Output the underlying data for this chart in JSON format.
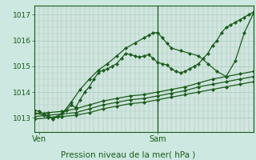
{
  "bg_color": "#cce8e0",
  "grid_color_v": "#d8a8a8",
  "grid_color_h": "#aaccc0",
  "line_color": "#1a5c1a",
  "xlabel_label": "Pression niveau de la mer( hPa )",
  "xtick_labels_text": [
    "Ven",
    "Sam"
  ],
  "ven_x": 1,
  "sam_x": 27,
  "ytick_values": [
    1013,
    1014,
    1015,
    1016,
    1017
  ],
  "ylim": [
    1012.45,
    1017.35
  ],
  "xlim": [
    0,
    48
  ],
  "lines": [
    {
      "x": [
        0,
        1,
        2,
        3,
        4,
        5,
        6,
        7,
        8,
        9,
        10,
        11,
        12,
        13,
        14,
        15,
        16,
        17,
        18,
        19,
        20,
        21,
        22,
        23,
        24,
        25,
        26,
        27,
        28,
        29,
        30,
        31,
        32,
        33,
        34,
        35,
        36,
        37,
        38,
        39,
        40,
        41,
        42,
        43,
        44,
        45,
        46,
        47,
        48
      ],
      "y": [
        1013.3,
        1013.25,
        1013.15,
        1013.05,
        1012.95,
        1013.05,
        1013.15,
        1013.3,
        1013.5,
        1013.4,
        1013.7,
        1014.0,
        1014.2,
        1014.5,
        1014.75,
        1014.85,
        1014.9,
        1015.0,
        1015.1,
        1015.3,
        1015.5,
        1015.45,
        1015.4,
        1015.35,
        1015.4,
        1015.45,
        1015.3,
        1015.15,
        1015.1,
        1015.05,
        1014.9,
        1014.8,
        1014.75,
        1014.8,
        1014.9,
        1015.0,
        1015.1,
        1015.3,
        1015.5,
        1015.8,
        1016.0,
        1016.3,
        1016.5,
        1016.6,
        1016.7,
        1016.8,
        1016.9,
        1017.0,
        1017.1
      ]
    },
    {
      "x": [
        0,
        2,
        4,
        6,
        8,
        10,
        12,
        14,
        16,
        18,
        20,
        22,
        24,
        25,
        26,
        27,
        28,
        29,
        30,
        32,
        34,
        36,
        38,
        40,
        42,
        44,
        46,
        48
      ],
      "y": [
        1013.2,
        1013.1,
        1013.0,
        1013.15,
        1013.6,
        1014.1,
        1014.5,
        1014.85,
        1015.1,
        1015.4,
        1015.7,
        1015.9,
        1016.1,
        1016.2,
        1016.3,
        1016.3,
        1016.1,
        1015.9,
        1015.7,
        1015.6,
        1015.5,
        1015.4,
        1015.1,
        1014.8,
        1014.6,
        1015.2,
        1016.3,
        1017.05
      ]
    },
    {
      "x": [
        0,
        3,
        6,
        9,
        12,
        15,
        18,
        21,
        24,
        27,
        30,
        33,
        36,
        39,
        42,
        45,
        48
      ],
      "y": [
        1013.15,
        1013.2,
        1013.25,
        1013.35,
        1013.5,
        1013.65,
        1013.75,
        1013.85,
        1013.9,
        1014.0,
        1014.1,
        1014.2,
        1014.35,
        1014.5,
        1014.6,
        1014.7,
        1014.8
      ]
    },
    {
      "x": [
        0,
        3,
        6,
        9,
        12,
        15,
        18,
        21,
        24,
        27,
        30,
        33,
        36,
        39,
        42,
        45,
        48
      ],
      "y": [
        1013.05,
        1013.1,
        1013.15,
        1013.2,
        1013.35,
        1013.5,
        1013.6,
        1013.7,
        1013.75,
        1013.85,
        1013.95,
        1014.05,
        1014.2,
        1014.3,
        1014.4,
        1014.5,
        1014.6
      ]
    },
    {
      "x": [
        0,
        3,
        6,
        9,
        12,
        15,
        18,
        21,
        24,
        27,
        30,
        33,
        36,
        39,
        42,
        45,
        48
      ],
      "y": [
        1012.95,
        1013.0,
        1013.05,
        1013.1,
        1013.2,
        1013.35,
        1013.45,
        1013.55,
        1013.6,
        1013.7,
        1013.8,
        1013.9,
        1014.0,
        1014.1,
        1014.2,
        1014.3,
        1014.4
      ]
    }
  ],
  "marker": "D",
  "marker_size": 2.2,
  "linewidth": 0.9,
  "fig_width": 3.2,
  "fig_height": 2.0,
  "dpi": 100
}
